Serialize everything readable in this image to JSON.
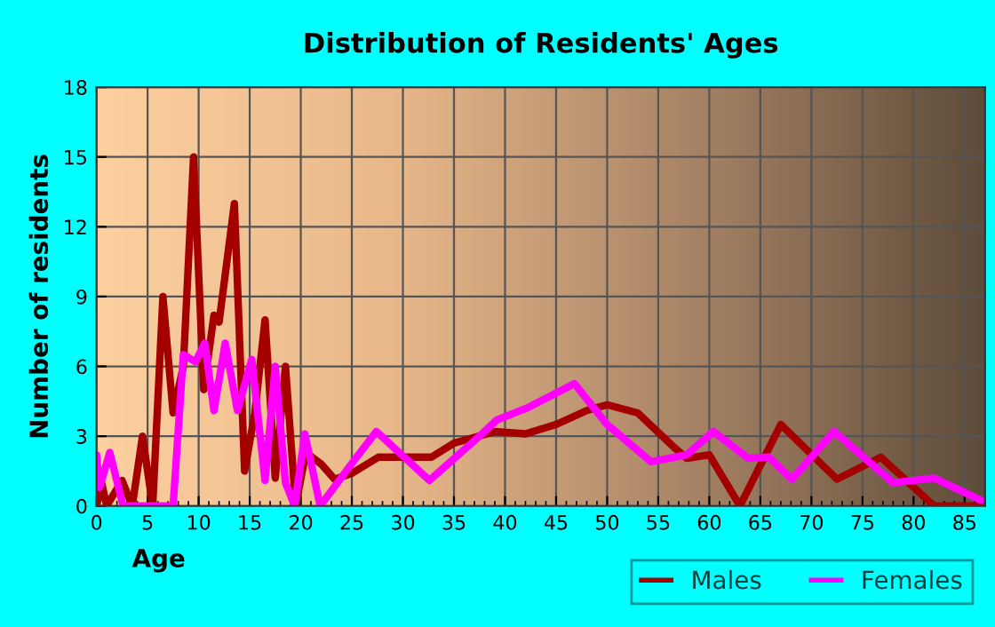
{
  "chart_data": {
    "type": "line",
    "title": "Distribution of Residents' Ages",
    "xlabel": "Age",
    "ylabel": "Number of residents",
    "xlim": [
      0,
      87
    ],
    "xticks": [
      0,
      5,
      10,
      15,
      20,
      25,
      30,
      35,
      40,
      45,
      50,
      55,
      60,
      65,
      70,
      75,
      80,
      85
    ],
    "ylim": [
      0,
      18
    ],
    "yticks": [
      0,
      3,
      6,
      9,
      12,
      15,
      18
    ],
    "grid": true,
    "legend": "bottom",
    "marker": "none",
    "line_style": "solid",
    "series": [
      {
        "name": "Males",
        "color": "#a50000",
        "x": [
          0,
          0.5,
          1,
          2.5,
          3.5,
          4.5,
          5.5,
          6.5,
          7.5,
          8.5,
          9.5,
          10.5,
          11.5,
          12,
          13.5,
          14.5,
          15.5,
          16.5,
          17.5,
          18.5,
          19.5,
          20.5,
          22,
          23.3,
          25,
          27.6,
          30,
          32.8,
          35,
          39,
          42,
          45,
          48,
          50,
          53,
          56.6,
          57.8,
          60,
          63,
          67,
          72.5,
          76.8,
          82,
          86.6
        ],
        "values": [
          0,
          1,
          0,
          1.1,
          0,
          3,
          0,
          9,
          4,
          6,
          15,
          5,
          8.2,
          7.9,
          13,
          1.5,
          4,
          8,
          1.2,
          6,
          0,
          2.3,
          1.8,
          1.15,
          1.4,
          2.1,
          2.1,
          2.1,
          2.7,
          3.2,
          3.1,
          3.5,
          4.1,
          4.35,
          4.0,
          2.5,
          2.05,
          2.2,
          0,
          3.5,
          1.15,
          2.1,
          0,
          0
        ]
      },
      {
        "name": "Females",
        "color": "#ff00ff",
        "x": [
          0,
          0.3,
          1.3,
          2.6,
          7.5,
          8.5,
          9.7,
          10.6,
          11.5,
          12.6,
          13.8,
          15.2,
          16.5,
          17.5,
          18.5,
          19.4,
          20.4,
          21.9,
          25.3,
          27.4,
          32.6,
          37.5,
          39.2,
          42.1,
          46.8,
          50,
          54.3,
          57.8,
          60.4,
          63.8,
          65.8,
          68.1,
          72.2,
          78,
          82,
          86.6
        ],
        "values": [
          2.2,
          0.8,
          2.3,
          0,
          0,
          6.5,
          6.2,
          7,
          4.1,
          7,
          4.1,
          6.3,
          1.1,
          6,
          1,
          0,
          3.1,
          0,
          2,
          3.2,
          1.1,
          3.0,
          3.7,
          4.2,
          5.26,
          3.5,
          1.9,
          2.2,
          3.2,
          2.05,
          2.1,
          1.15,
          3.2,
          1.0,
          1.2,
          0.25
        ]
      }
    ]
  }
}
